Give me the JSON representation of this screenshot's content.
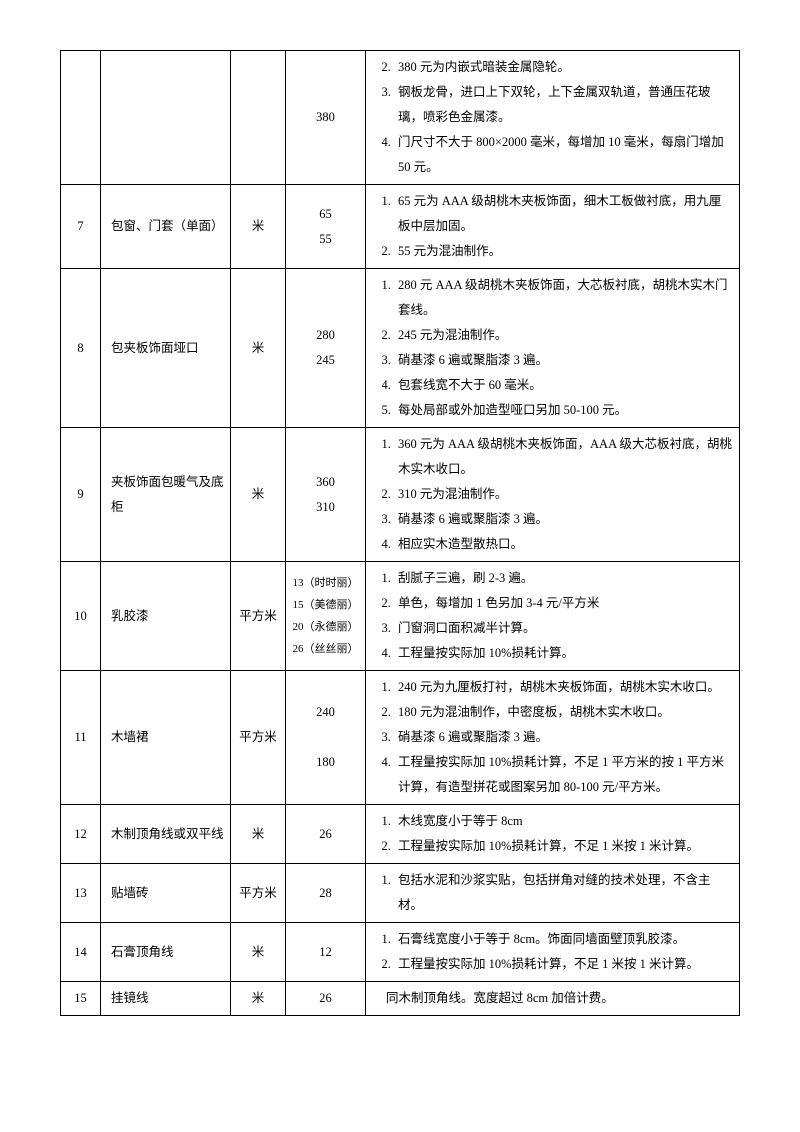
{
  "rows": [
    {
      "num": "",
      "name": "",
      "unit": "",
      "price": [
        "380"
      ],
      "desc_type": "ol",
      "desc_start": 2,
      "desc": [
        "380 元为内嵌式暗装金属隐轮。",
        "钢板龙骨，进口上下双轮，上下金属双轨道，普通压花玻璃，喷彩色金属漆。",
        "门尺寸不大于 800×2000 毫米，每增加 10 毫米，每扇门增加 50 元。"
      ]
    },
    {
      "num": "7",
      "name": "包窗、门套（单面）",
      "unit": "米",
      "price": [
        "65",
        "55"
      ],
      "desc_type": "ol",
      "desc_start": 1,
      "desc": [
        "65 元为 AAA 级胡桃木夹板饰面，细木工板做衬底，用九厘板中层加固。",
        "55 元为混油制作。"
      ]
    },
    {
      "num": "8",
      "name": "包夹板饰面垭口",
      "unit": "米",
      "price": [
        "280",
        "245"
      ],
      "desc_type": "ol",
      "desc_start": 1,
      "desc": [
        "280 元 AAA 级胡桃木夹板饰面，大芯板衬底，胡桃木实木门套线。",
        "245 元为混油制作。",
        "硝基漆 6 遍或聚脂漆 3 遍。",
        "包套线宽不大于 60 毫米。",
        "每处局部或外加造型哑口另加 50-100 元。"
      ]
    },
    {
      "num": "9",
      "name": "夹板饰面包暖气及底柜",
      "unit": "米",
      "price": [
        "360",
        "310"
      ],
      "desc_type": "ol",
      "desc_start": 1,
      "desc": [
        "360 元为 AAA 级胡桃木夹板饰面，AAA 级大芯板衬底，胡桃木实木收口。",
        "310 元为混油制作。",
        "硝基漆 6 遍或聚脂漆 3 遍。",
        "相应实木造型散热口。"
      ]
    },
    {
      "num": "10",
      "name": "乳胶漆",
      "unit": "平方米",
      "price_small": true,
      "price": [
        "13（时时丽）",
        "15（美德丽）",
        "20（永德丽）",
        "26（丝丝丽）"
      ],
      "desc_type": "ol",
      "desc_start": 1,
      "desc": [
        "刮腻子三遍，刷 2-3 遍。",
        "单色，每增加 1 色另加 3-4 元/平方米",
        "门窗洞口面积减半计算。",
        "工程量按实际加 10%损耗计算。"
      ]
    },
    {
      "num": "11",
      "name": "木墙裙",
      "unit": "平方米",
      "price_spaced": true,
      "price": [
        "240",
        "180"
      ],
      "desc_type": "ol",
      "desc_start": 1,
      "desc": [
        "240 元为九厘板打衬，胡桃木夹板饰面，胡桃木实木收口。",
        "180 元为混油制作，中密度板，胡桃木实木收口。",
        "硝基漆 6 遍或聚脂漆 3 遍。",
        "工程量按实际加 10%损耗计算，不足 1 平方米的按 1 平方米计算，有造型拼花或图案另加 80-100 元/平方米。"
      ]
    },
    {
      "num": "12",
      "name": "木制顶角线或双平线",
      "unit": "米",
      "price": [
        "26"
      ],
      "desc_type": "ol",
      "desc_start": 1,
      "desc": [
        "木线宽度小于等于 8cm",
        "工程量按实际加 10%损耗计算，不足 1 米按 1 米计算。"
      ]
    },
    {
      "num": "13",
      "name": "贴墙砖",
      "unit": "平方米",
      "price": [
        "28"
      ],
      "desc_type": "ol",
      "desc_start": 1,
      "desc": [
        "包括水泥和沙浆实贴，包括拼角对缝的技术处理，不含主材。"
      ]
    },
    {
      "num": "14",
      "name": "石膏顶角线",
      "unit": "米",
      "price": [
        "12"
      ],
      "desc_type": "ol",
      "desc_start": 1,
      "desc": [
        "石膏线宽度小于等于 8cm。饰面同墙面壁顶乳胶漆。",
        "工程量按实际加 10%损耗计算，不足 1 米按 1 米计算。"
      ]
    },
    {
      "num": "15",
      "name": "挂镜线",
      "unit": "米",
      "price": [
        "26"
      ],
      "desc_type": "plain",
      "desc_plain": "同木制顶角线。宽度超过 8cm 加倍计费。"
    }
  ]
}
